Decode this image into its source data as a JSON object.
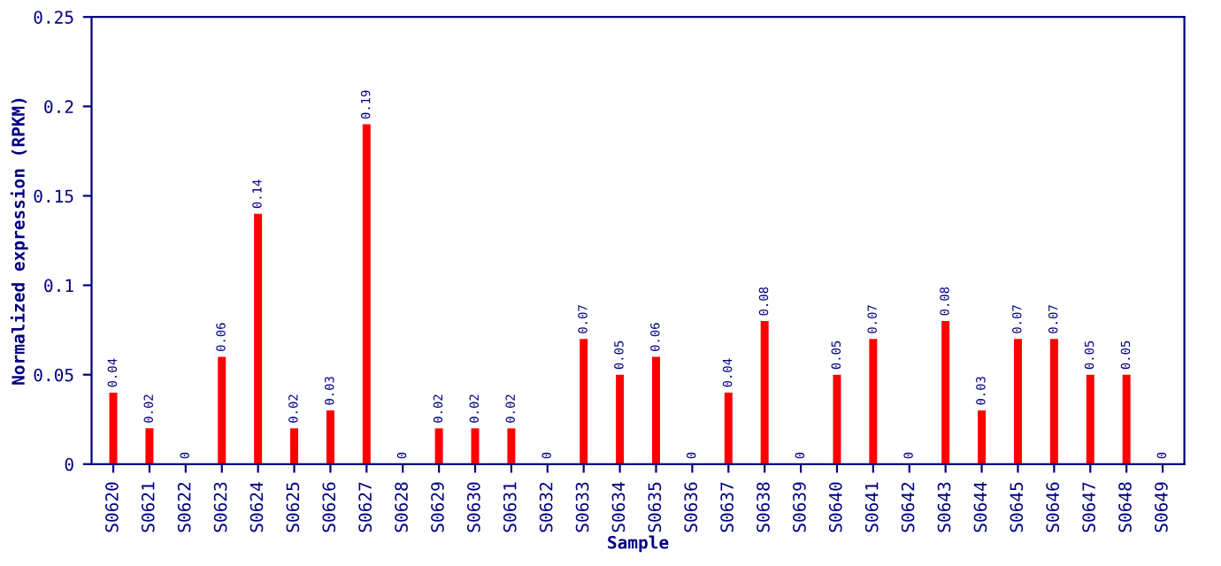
{
  "chart_data": {
    "type": "bar",
    "xlabel": "Sample",
    "ylabel": "Normalized expression (RPKM)",
    "categories": [
      "S0620",
      "S0621",
      "S0622",
      "S0623",
      "S0624",
      "S0625",
      "S0626",
      "S0627",
      "S0628",
      "S0629",
      "S0630",
      "S0631",
      "S0632",
      "S0633",
      "S0634",
      "S0635",
      "S0636",
      "S0637",
      "S0638",
      "S0639",
      "S0640",
      "S0641",
      "S0642",
      "S0643",
      "S0644",
      "S0645",
      "S0646",
      "S0647",
      "S0648",
      "S0649"
    ],
    "values": [
      0.04,
      0.02,
      0,
      0.06,
      0.14,
      0.02,
      0.03,
      0.19,
      0,
      0.02,
      0.02,
      0.02,
      0,
      0.07,
      0.05,
      0.06,
      0,
      0.04,
      0.08,
      0,
      0.05,
      0.07,
      0,
      0.08,
      0.03,
      0.07,
      0.07,
      0.05,
      0.05,
      0
    ],
    "color": "#ff0000",
    "ylim": [
      0,
      0.25
    ],
    "yticks": [
      0,
      0.05,
      0.1,
      0.15,
      0.2,
      0.25
    ],
    "data_labels": true,
    "grid": false
  }
}
